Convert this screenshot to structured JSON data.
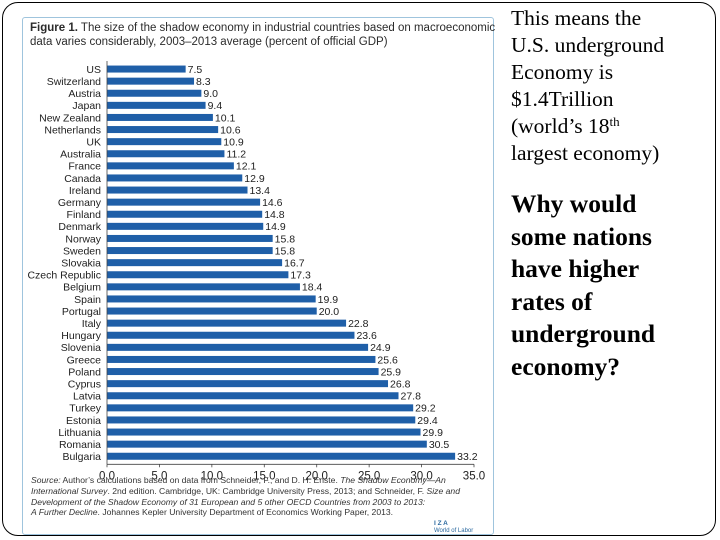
{
  "slide": {
    "side_stat_lines": [
      "This means the",
      "U.S. underground",
      "Economy is",
      "$1.4Trillion"
    ],
    "side_stat_rank_prefix": "(world’s 18",
    "side_stat_rank_suffix": "th",
    "side_stat_last": "largest economy)",
    "question_lines": [
      "Why would",
      "some nations",
      "have higher",
      "rates of",
      "underground",
      "economy?"
    ]
  },
  "figure": {
    "label": "Figure 1.",
    "title_rest": " The size of the shadow economy in industrial countries based on macroeconomic",
    "title_line2": "data varies considerably, 2003–2013 average (percent of official GDP)",
    "source_label": "Source:",
    "source_line1": " Author’s calculations based on data from Schneider, F., and D. H. Enste. ",
    "source_line1_italic": "The Shadow Economy—An",
    "source_line2_italic": "International Survey",
    "source_line2_rest": ". 2nd edition. Cambridge, UK: Cambridge University Press, 2013; and Schneider, F. ",
    "source_line2_italic2": "Size and",
    "source_line3_italic": "Development of the Shadow Economy of 31 European and 5 other OECD Countries from 2003 to 2013:",
    "source_line4_italic": "A Further Decline",
    "source_line4_rest": ". Johannes Kepler University Department of Economics Working Paper, 2013.",
    "logo_main": "I Z A",
    "logo_sub": "World of Labor"
  },
  "chart_data": {
    "type": "bar",
    "orientation": "horizontal",
    "title": "The size of the shadow economy in industrial countries based on macroeconomic data varies considerably, 2003–2013 average (percent of official GDP)",
    "xlabel": "",
    "ylabel": "",
    "xlim": [
      0,
      35
    ],
    "xticks": [
      "0.0",
      "5.0",
      "10.0",
      "15.0",
      "20.0",
      "25.0",
      "30.0",
      "35.0"
    ],
    "categories": [
      "US",
      "Switzerland",
      "Austria",
      "Japan",
      "New Zealand",
      "Netherlands",
      "UK",
      "Australia",
      "France",
      "Canada",
      "Ireland",
      "Germany",
      "Finland",
      "Denmark",
      "Norway",
      "Sweden",
      "Slovakia",
      "Czech Republic",
      "Belgium",
      "Spain",
      "Portugal",
      "Italy",
      "Hungary",
      "Slovenia",
      "Greece",
      "Poland",
      "Cyprus",
      "Latvia",
      "Turkey",
      "Estonia",
      "Lithuania",
      "Romania",
      "Bulgaria"
    ],
    "values": [
      7.5,
      8.3,
      9.0,
      9.4,
      10.1,
      10.6,
      10.9,
      11.2,
      12.1,
      12.9,
      13.4,
      14.6,
      14.8,
      14.9,
      15.8,
      15.8,
      16.7,
      17.3,
      18.4,
      19.9,
      20.0,
      22.8,
      23.6,
      24.9,
      25.6,
      25.9,
      26.8,
      27.8,
      29.2,
      29.4,
      29.9,
      30.5,
      33.2
    ],
    "labels": [
      "7.5",
      "8.3",
      "9.0",
      "9.4",
      "10.1",
      "10.6",
      "10.9",
      "11.2",
      "12.1",
      "12.9",
      "13.4",
      "14.6",
      "14.8",
      "14.9",
      "15.8",
      "15.8",
      "16.7",
      "17.3",
      "18.4",
      "19.9",
      "20.0",
      "22.8",
      "23.6",
      "24.9",
      "25.6",
      "25.9",
      "26.8",
      "27.8",
      "29.2",
      "29.4",
      "29.9",
      "30.5",
      "33.2"
    ],
    "bar_color": "#1f5fa8",
    "grid": false
  }
}
